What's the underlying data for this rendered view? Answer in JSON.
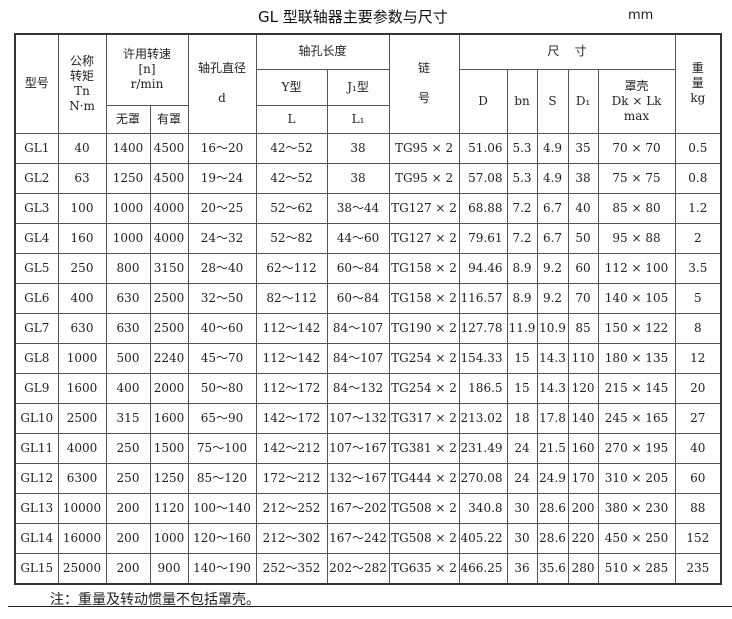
{
  "title": "GL 型联轴器主要参数与尺寸",
  "unit": "mm",
  "headers": {
    "model": "型号",
    "torque": "公称\n转矩\nTn\nN·m",
    "speed": "许用转速\n[n]\nr/min",
    "speed_no_cover": "无罩",
    "speed_cover": "有罩",
    "bore": "轴孔直径\n\nd",
    "bore_length": "轴孔长度",
    "y_type": "Y型",
    "j1_type": "J₁型",
    "L": "L",
    "L1": "L₁",
    "chain": "链\n\n号",
    "dims": "尺    寸",
    "D": "D",
    "bn": "bn",
    "S": "S",
    "D1": "D₁",
    "cover": "罩壳\nDk × Lk\nmax",
    "weight": "重\n量\nkg"
  },
  "rows": [
    [
      "GL1",
      "40",
      "1400",
      "4500",
      "16～20",
      "42～52",
      "38",
      "TG95 × 2",
      "51.06",
      "5.3",
      "4.9",
      "35",
      "70 × 70",
      "0.5"
    ],
    [
      "GL2",
      "63",
      "1250",
      "4500",
      "19～24",
      "42～52",
      "38",
      "TG95 × 2",
      "57.08",
      "5.3",
      "4.9",
      "38",
      "75 × 75",
      "0.8"
    ],
    [
      "GL3",
      "100",
      "1000",
      "4000",
      "20～25",
      "52～62",
      "38～44",
      "TG127 × 2",
      "68.88",
      "7.2",
      "6.7",
      "40",
      "85 × 80",
      "1.2"
    ],
    [
      "GL4",
      "160",
      "1000",
      "4000",
      "24～32",
      "52～82",
      "44～60",
      "TG127 × 2",
      "79.61",
      "7.2",
      "6.7",
      "50",
      "95 × 88",
      "2"
    ],
    [
      "GL5",
      "250",
      "800",
      "3150",
      "28～40",
      "62～112",
      "60～84",
      "TG158 × 2",
      "94.46",
      "8.9",
      "9.2",
      "60",
      "112 × 100",
      "3.5"
    ],
    [
      "GL6",
      "400",
      "630",
      "2500",
      "32～50",
      "82～112",
      "60～84",
      "TG158 × 2",
      "116.57",
      "8.9",
      "9.2",
      "70",
      "140 × 105",
      "5"
    ],
    [
      "GL7",
      "630",
      "630",
      "2500",
      "40～60",
      "112～142",
      "84～107",
      "TG190 × 2",
      "127.78",
      "11.9",
      "10.9",
      "85",
      "150 × 122",
      "8"
    ],
    [
      "GL8",
      "1000",
      "500",
      "2240",
      "45～70",
      "112～142",
      "84～107",
      "TG254 × 2",
      "154.33",
      "15",
      "14.3",
      "110",
      "180 × 135",
      "12"
    ],
    [
      "GL9",
      "1600",
      "400",
      "2000",
      "50～80",
      "112～172",
      "84～132",
      "TG254 × 2",
      "186.5",
      "15",
      "14.3",
      "120",
      "215 × 145",
      "20"
    ],
    [
      "GL10",
      "2500",
      "315",
      "1600",
      "65～90",
      "142～172",
      "107～132",
      "TG317 × 2",
      "213.02",
      "18",
      "17.8",
      "140",
      "245 × 165",
      "27"
    ],
    [
      "GL11",
      "4000",
      "250",
      "1500",
      "75～100",
      "142～212",
      "107～167",
      "TG381 × 2",
      "231.49",
      "24",
      "21.5",
      "160",
      "270 × 195",
      "40"
    ],
    [
      "GL12",
      "6300",
      "250",
      "1250",
      "85～120",
      "172～212",
      "132～167",
      "TG444 × 2",
      "270.08",
      "24",
      "24.9",
      "170",
      "310 × 205",
      "60"
    ],
    [
      "GL13",
      "10000",
      "200",
      "1120",
      "100～140",
      "212～252",
      "167～202",
      "TG508 × 2",
      "340.8",
      "30",
      "28.6",
      "200",
      "380 × 230",
      "88"
    ],
    [
      "GL14",
      "16000",
      "200",
      "1000",
      "120～160",
      "212～302",
      "167～242",
      "TG508 × 2",
      "405.22",
      "30",
      "28.6",
      "220",
      "450 × 250",
      "152"
    ],
    [
      "GL15",
      "25000",
      "200",
      "900",
      "140～190",
      "252～352",
      "202～282",
      "TG635 × 2",
      "466.25",
      "36",
      "35.6",
      "280",
      "510 × 285",
      "235"
    ]
  ],
  "note": "注：重量及转动惯量不包括罩壳。"
}
